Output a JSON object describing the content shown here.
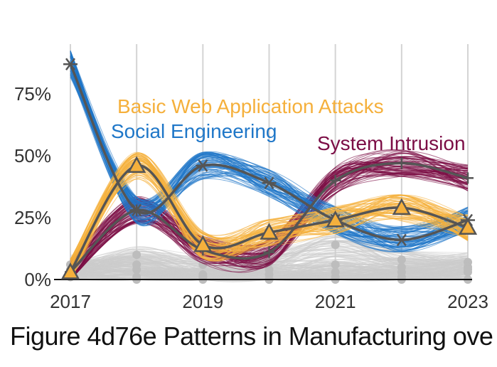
{
  "caption": "Figure 4d76e Patterns in Manufacturing ove",
  "chart_data": {
    "type": "line",
    "title": "",
    "xlabel": "",
    "ylabel": "",
    "x": [
      2017,
      2018,
      2019,
      2020,
      2021,
      2022,
      2023
    ],
    "x_tick_labels": [
      "2017",
      "2019",
      "2021",
      "2023"
    ],
    "x_tick_values": [
      2017,
      2019,
      2021,
      2023
    ],
    "y_tick_labels": [
      "0%",
      "25%",
      "50%",
      "75%"
    ],
    "y_tick_values": [
      0,
      0.25,
      0.5,
      0.75
    ],
    "ylim": [
      0,
      0.9
    ],
    "grid": "vertical",
    "series": [
      {
        "name": "System Intrusion",
        "color": "#7b0d45",
        "marker": "plus",
        "values": [
          0.03,
          0.28,
          0.12,
          0.11,
          0.4,
          0.47,
          0.41
        ]
      },
      {
        "name": "Social Engineering",
        "color": "#1f77c8",
        "marker": "asterisk",
        "values": [
          0.87,
          0.28,
          0.46,
          0.39,
          0.24,
          0.16,
          0.24
        ]
      },
      {
        "name": "Basic Web Application Attacks",
        "color": "#f5b03c",
        "marker": "triangle",
        "values": [
          0.03,
          0.46,
          0.14,
          0.19,
          0.24,
          0.29,
          0.21
        ]
      }
    ],
    "background_series_color": "#cccccc",
    "background_series": [
      [
        0.06,
        0.04,
        0.01,
        0.07,
        0.14,
        0.08,
        0.07
      ],
      [
        0.02,
        0.01,
        0.0,
        0.0,
        0.0,
        0.0,
        0.0
      ],
      [
        0.01,
        0.0,
        0.01,
        0.0,
        0.01,
        0.01,
        0.03
      ],
      [
        0.03,
        0.1,
        0.06,
        0.04,
        0.06,
        0.05,
        0.05
      ],
      [
        0.04,
        0.06,
        0.02,
        0.02,
        0.03,
        0.03,
        0.04
      ]
    ],
    "series_labels": [
      {
        "series": "Basic Web Application Attacks",
        "text": "Basic Web Application Attacks"
      },
      {
        "series": "Social Engineering",
        "text": "Social Engineering"
      },
      {
        "series": "System Intrusion",
        "text": "System Intrusion"
      }
    ]
  }
}
